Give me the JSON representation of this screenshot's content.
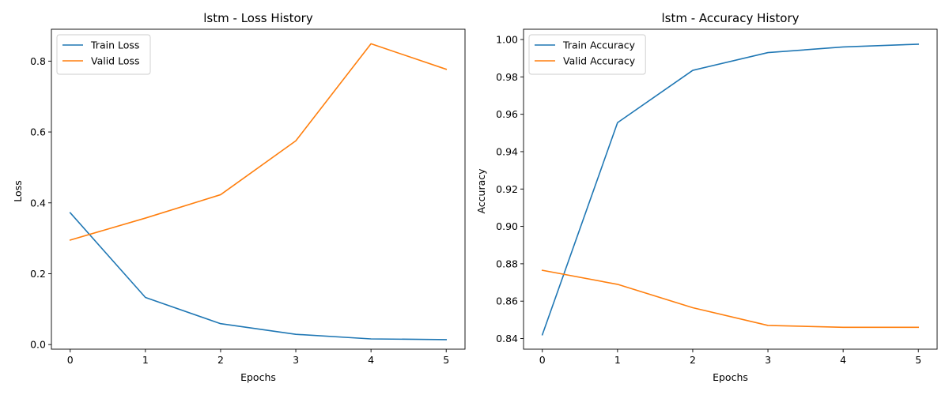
{
  "chart_data": [
    {
      "type": "line",
      "title": "lstm - Loss History",
      "xlabel": "Epochs",
      "ylabel": "Loss",
      "x": [
        0,
        1,
        2,
        3,
        4,
        5
      ],
      "xlim": [
        -0.25,
        5.25
      ],
      "ylim": [
        -0.013,
        0.89
      ],
      "xticks": [
        0,
        1,
        2,
        3,
        4,
        5
      ],
      "xtick_labels": [
        "0",
        "1",
        "2",
        "3",
        "4",
        "5"
      ],
      "yticks": [
        0.0,
        0.2,
        0.4,
        0.6,
        0.8
      ],
      "ytick_labels": [
        "0.0",
        "0.2",
        "0.4",
        "0.6",
        "0.8"
      ],
      "grid": false,
      "legend_position": "top-left",
      "series": [
        {
          "name": "Train Loss",
          "color": "#1f77b4",
          "values": [
            0.372,
            0.133,
            0.059,
            0.029,
            0.016,
            0.014
          ]
        },
        {
          "name": "Valid Loss",
          "color": "#ff7f0e",
          "values": [
            0.295,
            0.357,
            0.423,
            0.575,
            0.849,
            0.777
          ]
        }
      ]
    },
    {
      "type": "line",
      "title": "lstm - Accuracy History",
      "xlabel": "Epochs",
      "ylabel": "Accuracy",
      "x": [
        0,
        1,
        2,
        3,
        4,
        5
      ],
      "xlim": [
        -0.25,
        5.25
      ],
      "ylim": [
        0.8343,
        1.0055
      ],
      "xticks": [
        0,
        1,
        2,
        3,
        4,
        5
      ],
      "xtick_labels": [
        "0",
        "1",
        "2",
        "3",
        "4",
        "5"
      ],
      "yticks": [
        0.84,
        0.86,
        0.88,
        0.9,
        0.92,
        0.94,
        0.96,
        0.98,
        1.0
      ],
      "ytick_labels": [
        "0.84",
        "0.86",
        "0.88",
        "0.90",
        "0.92",
        "0.94",
        "0.96",
        "0.98",
        "1.00"
      ],
      "grid": false,
      "legend_position": "top-left",
      "series": [
        {
          "name": "Train Accuracy",
          "color": "#1f77b4",
          "values": [
            0.842,
            0.9555,
            0.9835,
            0.993,
            0.996,
            0.9975
          ]
        },
        {
          "name": "Valid Accuracy",
          "color": "#ff7f0e",
          "values": [
            0.8765,
            0.869,
            0.8565,
            0.847,
            0.846,
            0.846
          ]
        }
      ]
    }
  ]
}
